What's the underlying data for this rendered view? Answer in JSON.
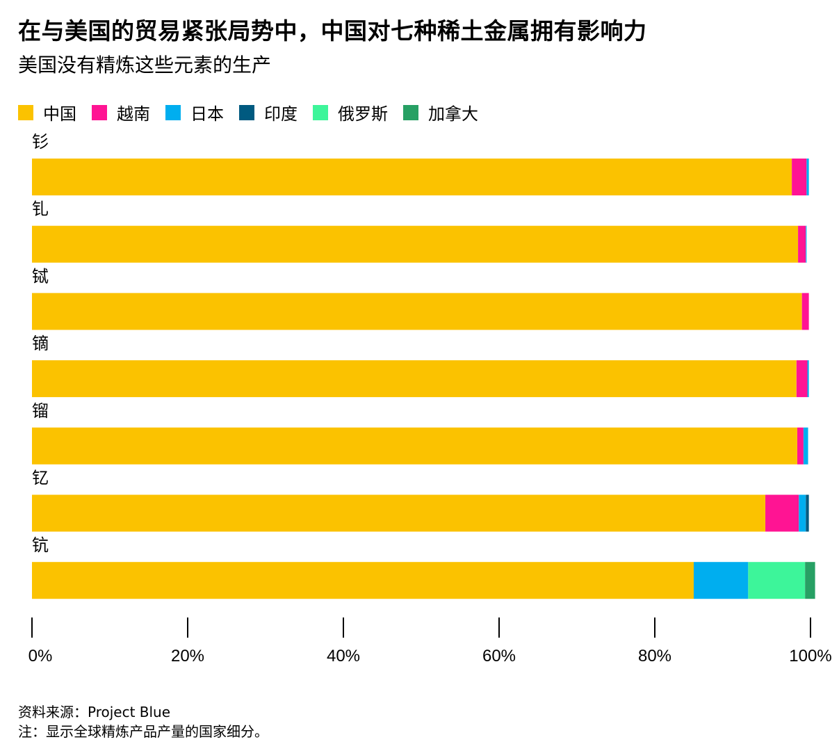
{
  "title": "在与美国的贸易紧张局势中，中国对七种稀土金属拥有影响力",
  "subtitle": "美国没有精炼这些元素的生产",
  "legend": [
    {
      "label": "中国",
      "color": "#FBC200"
    },
    {
      "label": "越南",
      "color": "#FF1493"
    },
    {
      "label": "日本",
      "color": "#00AEEF"
    },
    {
      "label": "印度",
      "color": "#005A80"
    },
    {
      "label": "俄罗斯",
      "color": "#3DF59A"
    },
    {
      "label": "加拿大",
      "color": "#27A064"
    }
  ],
  "chart_data": {
    "type": "bar",
    "orientation": "horizontal",
    "stacked": true,
    "categories": [
      "钐",
      "钆",
      "铽",
      "镝",
      "镏",
      "钇",
      "钪"
    ],
    "series": [
      {
        "name": "中国",
        "color": "#FBC200",
        "values": [
          97.6,
          98.4,
          98.9,
          98.2,
          98.3,
          94.2,
          85.0
        ]
      },
      {
        "name": "越南",
        "color": "#FF1493",
        "values": [
          1.9,
          1.0,
          0.9,
          1.4,
          0.8,
          4.3,
          0
        ]
      },
      {
        "name": "日本",
        "color": "#00AEEF",
        "values": [
          0.3,
          0.1,
          0,
          0.2,
          0.6,
          0.9,
          7.0
        ]
      },
      {
        "name": "印度",
        "color": "#005A80",
        "values": [
          0,
          0,
          0,
          0,
          0,
          0.4,
          0
        ]
      },
      {
        "name": "俄罗斯",
        "color": "#3DF59A",
        "values": [
          0,
          0,
          0,
          0,
          0,
          0,
          7.3
        ]
      },
      {
        "name": "加拿大",
        "color": "#27A064",
        "values": [
          0,
          0,
          0,
          0,
          0,
          0,
          1.3
        ]
      }
    ],
    "xlim": [
      0,
      100
    ],
    "xticks": [
      "0%",
      "20%",
      "40%",
      "60%",
      "80%",
      "100%"
    ],
    "grid": false,
    "legend_position": "top-left"
  },
  "footer": {
    "source": "资料来源：Project Blue",
    "note": "注：显示全球精炼产品产量的国家细分。"
  }
}
